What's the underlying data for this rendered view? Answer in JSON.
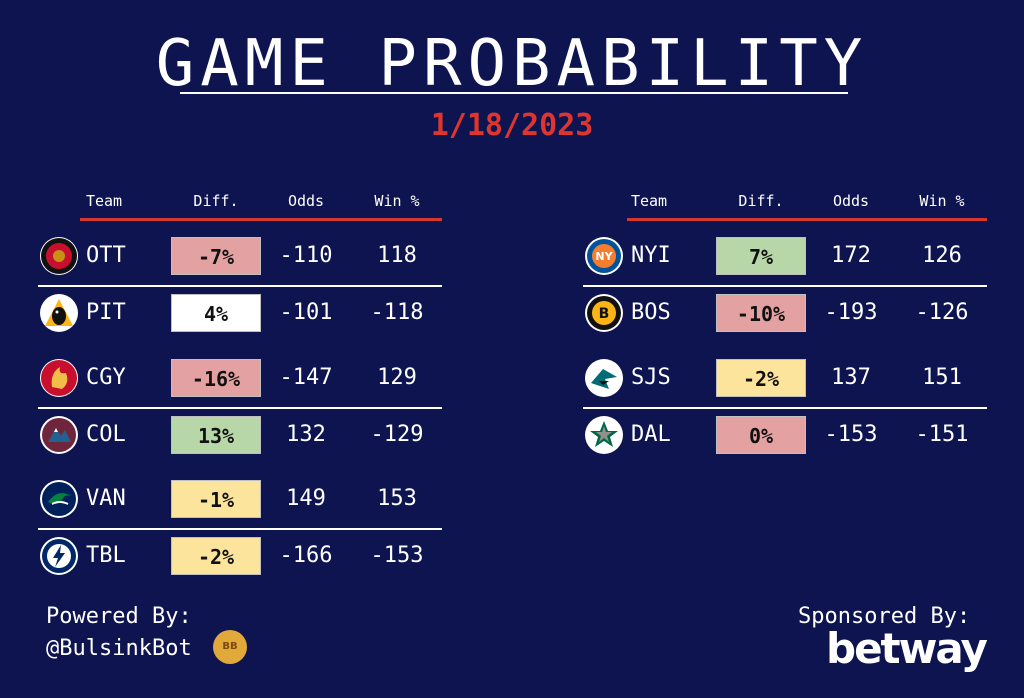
{
  "header": {
    "title": "GAME PROBABILITY",
    "date": "1/18/2023"
  },
  "columns": [
    "Team",
    "Diff.",
    "Odds",
    "Win %"
  ],
  "left_games": [
    {
      "team": "OTT",
      "logo": "senators-logo-icon",
      "diff": "-7%",
      "diff_color": "#e4a1a1",
      "odds": "-110",
      "win": "118"
    },
    {
      "team": "PIT",
      "logo": "penguins-logo-icon",
      "diff": "4%",
      "diff_color": "#ffffff",
      "odds": "-101",
      "win": "-118"
    },
    {
      "team": "CGY",
      "logo": "flames-logo-icon",
      "diff": "-16%",
      "diff_color": "#e4a1a1",
      "odds": "-147",
      "win": "129"
    },
    {
      "team": "COL",
      "logo": "avalanche-logo-icon",
      "diff": "13%",
      "diff_color": "#b7d7a8",
      "odds": "132",
      "win": "-129"
    },
    {
      "team": "VAN",
      "logo": "canucks-logo-icon",
      "diff": "-1%",
      "diff_color": "#fde49c",
      "odds": "149",
      "win": "153"
    },
    {
      "team": "TBL",
      "logo": "lightning-logo-icon",
      "diff": "-2%",
      "diff_color": "#fde49c",
      "odds": "-166",
      "win": "-153"
    }
  ],
  "right_games": [
    {
      "team": "NYI",
      "logo": "islanders-logo-icon",
      "diff": "7%",
      "diff_color": "#b7d7a8",
      "odds": "172",
      "win": "126"
    },
    {
      "team": "BOS",
      "logo": "bruins-logo-icon",
      "diff": "-10%",
      "diff_color": "#e4a1a1",
      "odds": "-193",
      "win": "-126"
    },
    {
      "team": "SJS",
      "logo": "sharks-logo-icon",
      "diff": "-2%",
      "diff_color": "#fde49c",
      "odds": "137",
      "win": "151"
    },
    {
      "team": "DAL",
      "logo": "stars-logo-icon",
      "diff": "0%",
      "diff_color": "#e4a1a1",
      "odds": "-153",
      "win": "-151"
    }
  ],
  "footer": {
    "powered_label": "Powered By:",
    "powered_handle": "@BulsinkBot",
    "sponsored_label": "Sponsored By:",
    "sponsor": "betway"
  },
  "colors": {
    "background": "#0e1450",
    "accent_red": "#e0352e"
  }
}
